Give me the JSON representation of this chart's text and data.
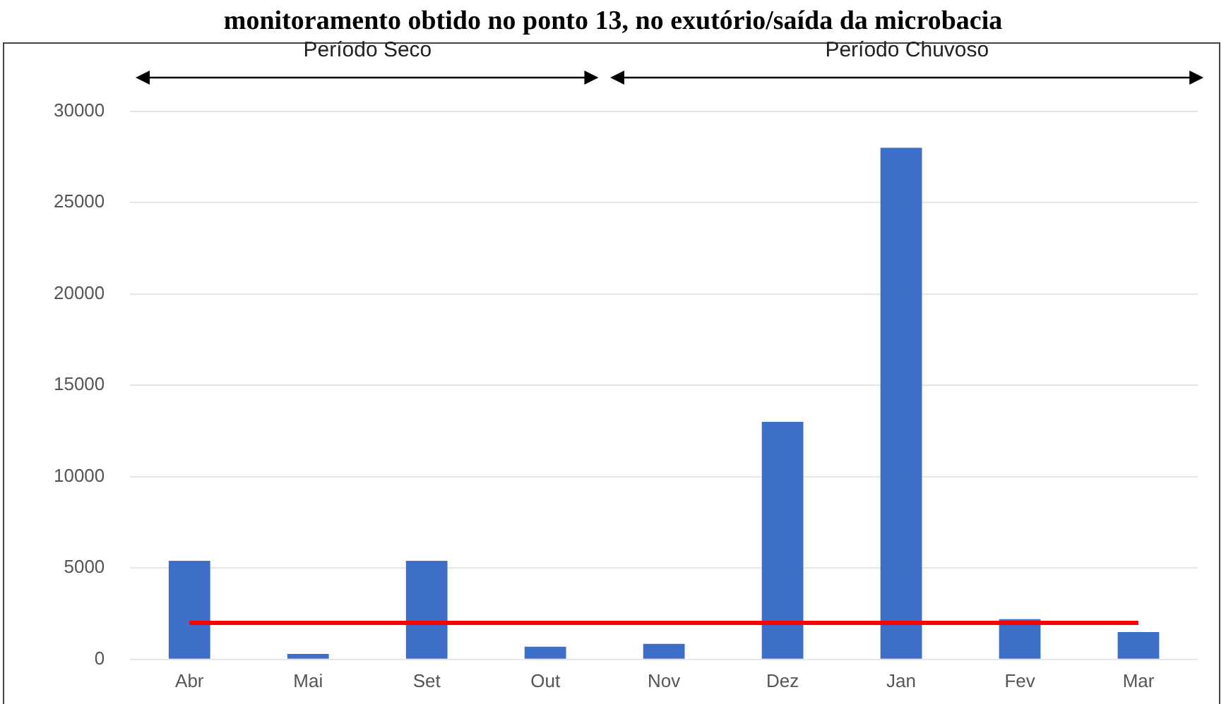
{
  "chart_data": {
    "type": "bar",
    "title": "monitoramento obtido no ponto 13, no exutório/saída da microbacia",
    "categories": [
      "Abr",
      "Mai",
      "Set",
      "Out",
      "Nov",
      "Dez",
      "Jan",
      "Fev",
      "Mar"
    ],
    "values": [
      5400,
      300,
      5400,
      700,
      850,
      13000,
      28000,
      2200,
      1500
    ],
    "color": "#3d6fc9",
    "ylim": [
      0,
      30000
    ],
    "yticks": [
      0,
      5000,
      10000,
      15000,
      20000,
      25000,
      30000
    ],
    "grid": "y",
    "ref_lines": [
      {
        "axis": "y",
        "value": 2000,
        "color": "#ff0000"
      }
    ],
    "annotations": [
      "Período Seco",
      "Período Chuvoso"
    ]
  }
}
